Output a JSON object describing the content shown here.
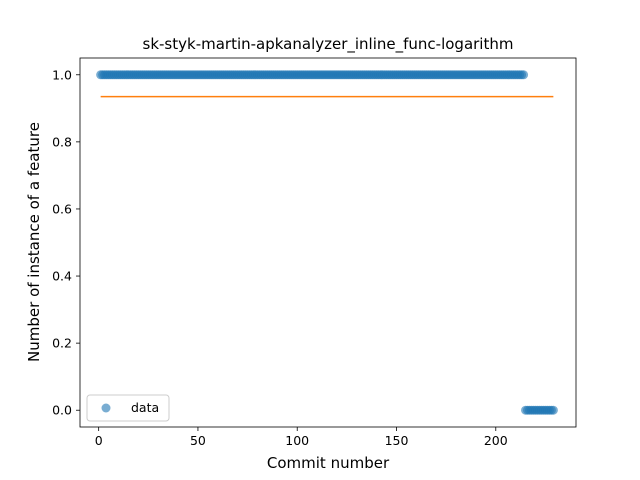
{
  "chart_data": {
    "type": "scatter",
    "title": "sk-styk-martin-apkanalyzer_inline_func-logarithm",
    "xlabel": "Commit number",
    "ylabel": "Number of instance of a feature",
    "xlim": [
      -9.4,
      240.4
    ],
    "ylim": [
      -0.05,
      1.05
    ],
    "xticks": [
      0,
      50,
      100,
      150,
      200
    ],
    "yticks": [
      0.0,
      0.2,
      0.4,
      0.6,
      0.8,
      1.0
    ],
    "xtick_labels": [
      "0",
      "50",
      "100",
      "150",
      "200"
    ],
    "ytick_labels": [
      "0.0",
      "0.2",
      "0.4",
      "0.6",
      "0.8",
      "1.0"
    ],
    "series": [
      {
        "name": "data",
        "kind": "points",
        "color": "#1f77b4",
        "segments": [
          {
            "x_start": 1,
            "x_end": 214,
            "y": 1.0
          },
          {
            "x_start": 215,
            "x_end": 229,
            "y": 0.0
          }
        ]
      },
      {
        "kind": "line",
        "color": "#ff7f0e",
        "x": [
          1,
          229
        ],
        "y": [
          0.935,
          0.935
        ]
      }
    ],
    "legend": {
      "position": "lower-left",
      "entries": [
        "data"
      ]
    },
    "grid": false
  }
}
